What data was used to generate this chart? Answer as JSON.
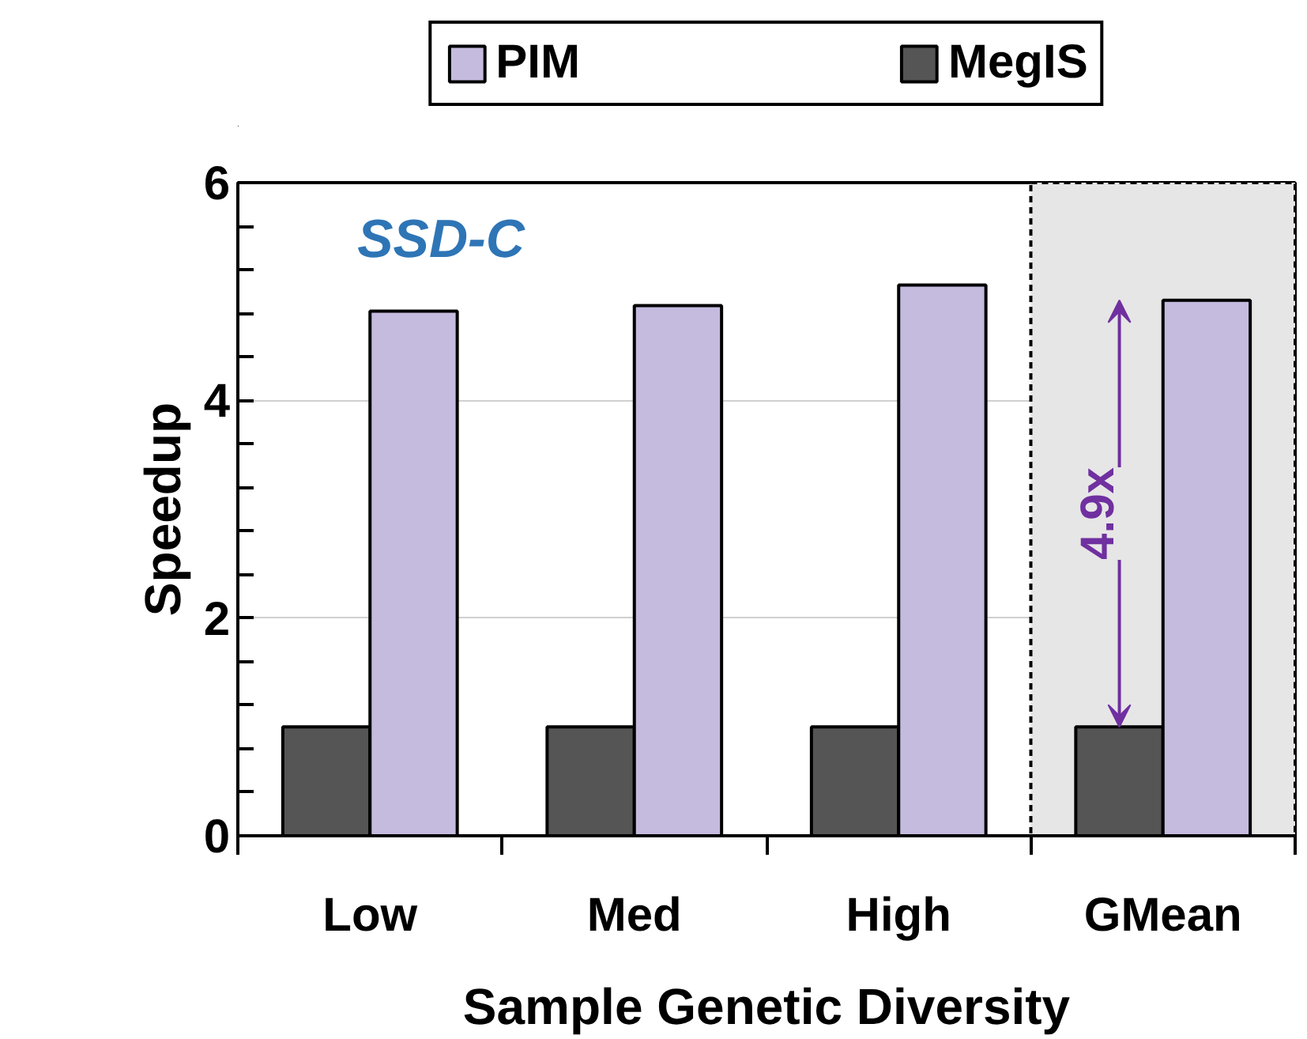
{
  "chart_data": {
    "type": "bar",
    "xlabel": "Sample Genetic Diversity",
    "ylabel": "Speedup",
    "categories": [
      "Low",
      "Med",
      "High",
      "GMean"
    ],
    "series": [
      {
        "name": "MegIS",
        "color": "#555555",
        "values": [
          1.0,
          1.0,
          1.0,
          1.0
        ]
      },
      {
        "name": "PIM",
        "color": "#c5bbdf",
        "values": [
          4.82,
          4.87,
          5.06,
          4.92
        ]
      }
    ],
    "ylim": [
      0,
      6
    ],
    "yticks": [
      0,
      {
        "value": 0.4,
        "label": null
      },
      {
        "value": 0.8,
        "label": null
      },
      {
        "value": 1.2,
        "label": null
      },
      {
        "value": 1.6,
        "label": null
      },
      2,
      {
        "value": 2.4,
        "label": null
      },
      {
        "value": 2.8,
        "label": null
      },
      {
        "value": 3.2,
        "label": null
      },
      {
        "value": 3.6,
        "label": null
      },
      4,
      {
        "value": 4.4,
        "label": null
      },
      {
        "value": 4.8,
        "label": null
      },
      {
        "value": 5.2,
        "label": null
      },
      {
        "value": 5.6,
        "label": null
      },
      6
    ],
    "grid": "y",
    "legend": "top",
    "bands": [
      {
        "axis": "x",
        "from": "GMean",
        "to": "GMean",
        "color": "#e6e6e6"
      }
    ],
    "annotations": [
      "SSD-C",
      {
        "text": "4.9x",
        "x": "GMean",
        "y": 2.96
      }
    ]
  }
}
